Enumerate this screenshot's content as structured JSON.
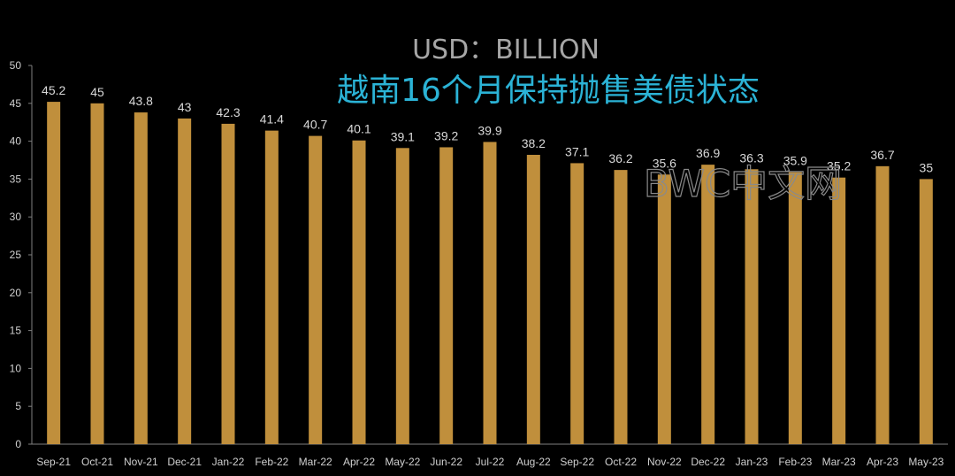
{
  "chart_data": {
    "type": "bar",
    "title": "USD：BILLION",
    "subtitle": "越南16个月保持抛售美债状态",
    "categories": [
      "Sep-21",
      "Oct-21",
      "Nov-21",
      "Dec-21",
      "Jan-22",
      "Feb-22",
      "Mar-22",
      "Apr-22",
      "May-22",
      "Jun-22",
      "Jul-22",
      "Aug-22",
      "Sep-22",
      "Oct-22",
      "Nov-22",
      "Dec-22",
      "Jan-23",
      "Feb-23",
      "Mar-23",
      "Apr-23",
      "May-23"
    ],
    "values": [
      45.2,
      45,
      43.8,
      43,
      42.3,
      41.4,
      40.7,
      40.1,
      39.1,
      39.2,
      39.9,
      38.2,
      37.1,
      36.2,
      35.6,
      36.9,
      36.3,
      35.9,
      35.2,
      36.7,
      35
    ],
    "ylim": [
      0,
      50
    ],
    "yticks": [
      0,
      5,
      10,
      15,
      20,
      25,
      30,
      35,
      40,
      45,
      50
    ],
    "grid": false,
    "legend": "none",
    "colors": {
      "bar": "#c08f3c",
      "background": "#000000",
      "axis": "#7f7f7f",
      "title": "#a6a6a6",
      "subtitle": "#2bb3d6"
    }
  },
  "watermark": "BWC中文网"
}
